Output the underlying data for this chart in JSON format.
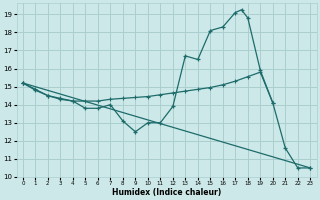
{
  "xlabel": "Humidex (Indice chaleur)",
  "bg_color": "#cce8e8",
  "grid_color": "#aacfcf",
  "line_color": "#1e6b6b",
  "xlim": [
    -0.5,
    23.5
  ],
  "ylim": [
    10,
    19.6
  ],
  "yticks": [
    10,
    11,
    12,
    13,
    14,
    15,
    16,
    17,
    18,
    19
  ],
  "xticks": [
    0,
    1,
    2,
    3,
    4,
    5,
    6,
    7,
    8,
    9,
    10,
    11,
    12,
    13,
    14,
    15,
    16,
    17,
    18,
    19,
    20,
    21,
    22,
    23
  ],
  "curve1_x": [
    0,
    1,
    2,
    3,
    4,
    5,
    6,
    7,
    8,
    9,
    10,
    11,
    12,
    13,
    14,
    15,
    16,
    17,
    17.5,
    18,
    19,
    20,
    21,
    22,
    23
  ],
  "curve1_y": [
    15.2,
    14.8,
    14.5,
    14.3,
    14.2,
    13.8,
    13.8,
    14.0,
    13.1,
    12.5,
    13.0,
    13.0,
    13.9,
    16.7,
    16.5,
    18.1,
    18.3,
    19.1,
    19.25,
    18.8,
    15.9,
    14.1,
    11.6,
    10.5,
    10.5
  ],
  "curve2_x": [
    0,
    1,
    2,
    3,
    4,
    5,
    6,
    7,
    8,
    9,
    10,
    11,
    12,
    13,
    14,
    15,
    16,
    17,
    18,
    19,
    20
  ],
  "curve2_y": [
    15.2,
    14.85,
    14.5,
    14.35,
    14.2,
    14.2,
    14.2,
    14.3,
    14.35,
    14.4,
    14.45,
    14.55,
    14.65,
    14.75,
    14.85,
    14.95,
    15.1,
    15.3,
    15.55,
    15.8,
    14.1
  ],
  "curve3_x": [
    0,
    23
  ],
  "curve3_y": [
    15.2,
    10.5
  ]
}
